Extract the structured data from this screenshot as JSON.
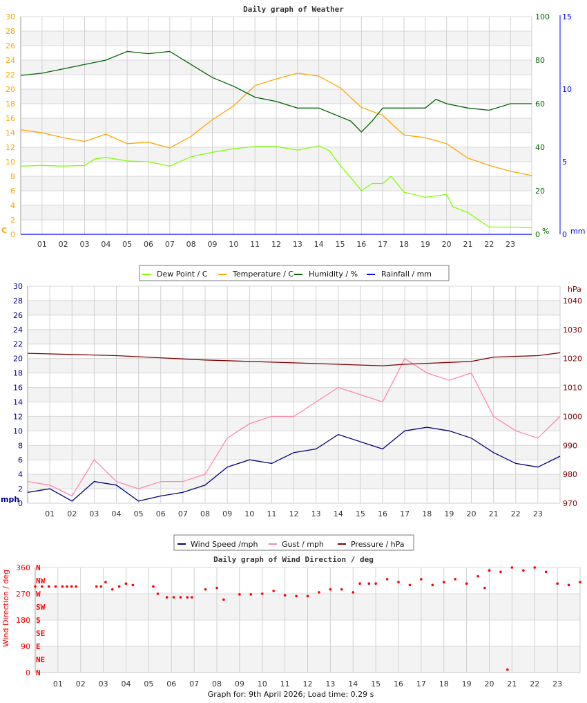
{
  "footer": "Graph for: 9th April 2026; Load time: 0.29 s",
  "hours": [
    "01",
    "02",
    "03",
    "04",
    "05",
    "06",
    "07",
    "08",
    "09",
    "10",
    "11",
    "12",
    "13",
    "14",
    "15",
    "16",
    "17",
    "18",
    "19",
    "20",
    "21",
    "22",
    "23"
  ],
  "chart_data": [
    {
      "type": "line",
      "title": "Daily graph of Weather",
      "x_unit": "hour of day",
      "xlim": [
        0,
        24
      ],
      "grid": true,
      "legend_placement": "bottom",
      "axes": {
        "left": {
          "label": "C",
          "range": [
            0,
            30
          ],
          "step": 2,
          "color": "#ffa500"
        },
        "right": {
          "label": "%",
          "range": [
            0,
            100
          ],
          "step": 20,
          "color": "#006400"
        },
        "right2": {
          "label": "mm",
          "range": [
            0,
            15
          ],
          "step": 5,
          "color": "#0000ff"
        }
      },
      "series": [
        {
          "name": "Dew Point / C",
          "axis": "left",
          "color": "#80ff00",
          "x": [
            0,
            1,
            2,
            3,
            3.5,
            4,
            5,
            6,
            7,
            8,
            9,
            10,
            11,
            12,
            13,
            14,
            14.5,
            15,
            15.6,
            16,
            16.5,
            17,
            17.4,
            18,
            19,
            20,
            20.3,
            21,
            22,
            23,
            24
          ],
          "y": [
            9.4,
            9.5,
            9.4,
            9.5,
            10.4,
            10.6,
            10.1,
            10.0,
            9.4,
            10.7,
            11.3,
            11.8,
            12.1,
            12.1,
            11.6,
            12.2,
            11.5,
            9.5,
            7.5,
            6.0,
            7.0,
            7.0,
            8.0,
            5.8,
            5.1,
            5.5,
            3.8,
            3.0,
            1.0,
            1.0,
            0.9
          ]
        },
        {
          "name": "Temperature / C",
          "axis": "left",
          "color": "#ffa500",
          "x": [
            0,
            1,
            2,
            3,
            4,
            5,
            6,
            7,
            8,
            9,
            10,
            11,
            12,
            13,
            14,
            15,
            16,
            17,
            17.5,
            18,
            19,
            20,
            21,
            22,
            23,
            24
          ],
          "y": [
            14.4,
            14.0,
            13.3,
            12.8,
            13.8,
            12.5,
            12.7,
            11.9,
            13.5,
            15.8,
            17.7,
            20.5,
            21.4,
            22.2,
            21.8,
            20.2,
            17.5,
            16.4,
            15.0,
            13.7,
            13.3,
            12.5,
            10.5,
            9.5,
            8.7,
            8.1
          ]
        },
        {
          "name": "Humidity / %",
          "axis": "right",
          "color": "#006400",
          "x": [
            0,
            1,
            2,
            3,
            4,
            5,
            6,
            7,
            8,
            9,
            10,
            11,
            12,
            13,
            14,
            14.5,
            15.5,
            16,
            16.5,
            17,
            18,
            19,
            19.5,
            20,
            21,
            22,
            23,
            24
          ],
          "y": [
            73,
            74,
            76,
            78,
            80,
            84,
            83,
            84,
            78,
            72,
            68,
            63,
            61,
            58,
            58,
            56,
            52,
            47,
            52,
            58,
            58,
            58,
            62,
            60,
            58,
            57,
            60,
            60
          ]
        },
        {
          "name": "Rainfall / mm",
          "axis": "right2",
          "color": "#0000ff",
          "x": [
            0,
            24
          ],
          "y": [
            0,
            0
          ]
        }
      ]
    },
    {
      "type": "line",
      "title": "",
      "x_unit": "hour of day",
      "xlim": [
        0,
        24
      ],
      "grid": true,
      "legend_placement": "bottom",
      "axes": {
        "left": {
          "label": "mph",
          "range": [
            0,
            30
          ],
          "step": 2,
          "color": "#00008b"
        },
        "right": {
          "label": "hPa",
          "range": [
            970,
            1045
          ],
          "ticks": [
            970,
            980,
            990,
            1000,
            1010,
            1020,
            1030,
            1040
          ],
          "color": "#800000"
        }
      },
      "series": [
        {
          "name": "Wind Speed /mph",
          "axis": "left",
          "color": "#000080",
          "x": [
            0,
            1,
            2,
            3,
            4,
            5,
            6,
            7,
            8,
            9,
            10,
            11,
            12,
            13,
            14,
            15,
            16,
            17,
            18,
            19,
            20,
            21,
            22,
            23,
            24
          ],
          "y": [
            1.5,
            2,
            0.3,
            3,
            2.5,
            0.3,
            1,
            1.5,
            2.5,
            5,
            6,
            5.5,
            7,
            7.5,
            9.5,
            8.5,
            7.5,
            10,
            10.5,
            10,
            9,
            7,
            5.5,
            5,
            6.5
          ]
        },
        {
          "name": "Gust / mph",
          "axis": "left",
          "color": "#ff88aa",
          "x": [
            0,
            1,
            2,
            3,
            4,
            5,
            6,
            7,
            8,
            9,
            10,
            11,
            12,
            13,
            14,
            15,
            16,
            17,
            18,
            19,
            20,
            21,
            22,
            23,
            24
          ],
          "y": [
            3,
            2.5,
            1,
            6,
            3,
            2,
            3,
            3,
            4,
            9,
            11,
            12,
            12,
            14,
            16,
            15,
            14,
            20,
            18,
            17,
            18,
            12,
            10,
            9,
            12
          ]
        },
        {
          "name": "Pressure / hPa",
          "axis": "right",
          "color": "#800000",
          "x": [
            0,
            4,
            8,
            12,
            14,
            16,
            17,
            20,
            21,
            23,
            24
          ],
          "y": [
            1021.8,
            1021,
            1019.5,
            1018.5,
            1018,
            1017.5,
            1018,
            1019,
            1020.5,
            1021,
            1022
          ]
        }
      ]
    },
    {
      "type": "scatter",
      "title": "Daily graph of Wind Direction / deg",
      "ylabel": "Wind Direction / deg",
      "x_unit": "hour of day",
      "xlim": [
        0,
        24
      ],
      "ylim": [
        0,
        360
      ],
      "yticks": [
        0,
        90,
        180,
        270,
        360
      ],
      "compass_labels": [
        "N",
        "NE",
        "E",
        "SE",
        "S",
        "SW",
        "W",
        "NW",
        "N"
      ],
      "grid": true,
      "color": "#ff0000",
      "x": [
        0,
        0.3,
        0.6,
        0.9,
        1.2,
        1.4,
        1.6,
        1.8,
        2.7,
        2.9,
        3.1,
        3.4,
        3.7,
        4.0,
        4.3,
        5.2,
        5.4,
        5.8,
        6.1,
        6.4,
        6.7,
        6.9,
        7.5,
        8.0,
        8.3,
        9.0,
        9.5,
        10.0,
        10.5,
        11.0,
        11.5,
        12.0,
        12.5,
        13.0,
        13.5,
        14.0,
        14.3,
        14.7,
        15.0,
        15.5,
        16.0,
        16.5,
        17.0,
        17.5,
        18.0,
        18.5,
        19.0,
        19.5,
        19.8,
        20.0,
        20.5,
        20.8,
        21.0,
        21.5,
        22.0,
        22.5,
        23.0,
        23.5,
        24.0
      ],
      "y": [
        295,
        295,
        295,
        295,
        295,
        295,
        295,
        295,
        295,
        295,
        310,
        285,
        295,
        305,
        300,
        295,
        270,
        258,
        258,
        258,
        258,
        258,
        285,
        290,
        250,
        268,
        268,
        270,
        280,
        265,
        262,
        262,
        275,
        285,
        285,
        275,
        305,
        305,
        305,
        320,
        310,
        300,
        320,
        300,
        310,
        320,
        305,
        330,
        290,
        350,
        345,
        10,
        360,
        350,
        360,
        345,
        305,
        300,
        310
      ]
    }
  ]
}
